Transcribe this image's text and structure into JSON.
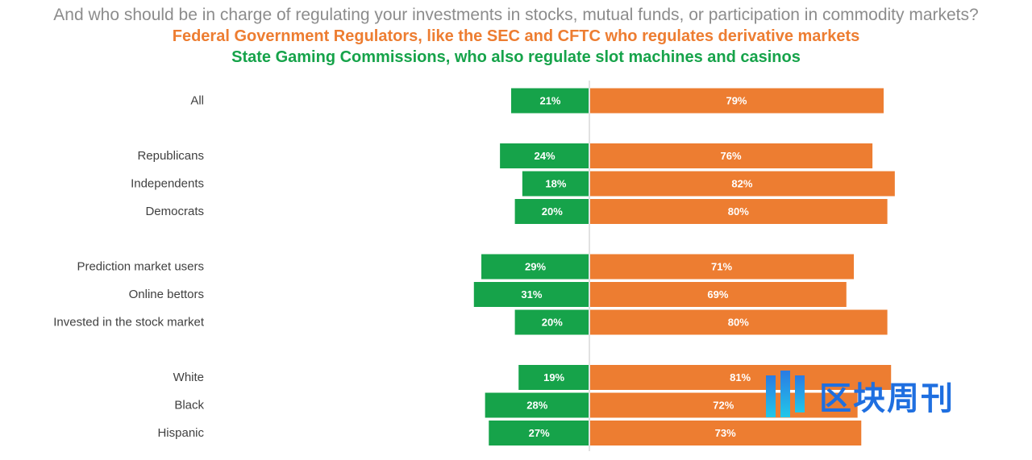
{
  "chart_data": {
    "type": "bar",
    "orientation": "horizontal-diverging",
    "title": "And who should be in charge of regulating your investments in stocks, mutual funds, or participation in commodity markets?",
    "legend": [
      {
        "name": "Federal Government Regulators, like the SEC and CFTC who regulates derivative markets",
        "color": "#ed7d31"
      },
      {
        "name": "State Gaming Commissions, who also regulate slot machines and casinos",
        "color": "#16a34a"
      }
    ],
    "categories": [
      "All",
      "Republicans",
      "Independents",
      "Democrats",
      "Prediction market users",
      "Online bettors",
      "Invested in the stock market",
      "White",
      "Black",
      "Hispanic"
    ],
    "groups": [
      [
        "All"
      ],
      [
        "Republicans",
        "Independents",
        "Democrats"
      ],
      [
        "Prediction market users",
        "Online bettors",
        "Invested in the stock market"
      ],
      [
        "White",
        "Black",
        "Hispanic"
      ]
    ],
    "series": [
      {
        "name": "State Gaming Commissions",
        "color": "#16a34a",
        "values": [
          21,
          24,
          18,
          20,
          29,
          31,
          20,
          19,
          28,
          27
        ],
        "labels": [
          "21%",
          "24%",
          "18%",
          "20%",
          "29%",
          "31%",
          "20%",
          "19%",
          "28%",
          "27%"
        ]
      },
      {
        "name": "Federal Government Regulators",
        "color": "#ed7d31",
        "values": [
          79,
          76,
          82,
          80,
          71,
          69,
          80,
          81,
          72,
          73
        ],
        "labels": [
          "79%",
          "76%",
          "82%",
          "80%",
          "71%",
          "69%",
          "80%",
          "81%",
          "72%",
          "73%"
        ]
      }
    ],
    "xlim": [
      0,
      100
    ],
    "unit": "%"
  },
  "watermark": {
    "text": "区块周刊"
  }
}
